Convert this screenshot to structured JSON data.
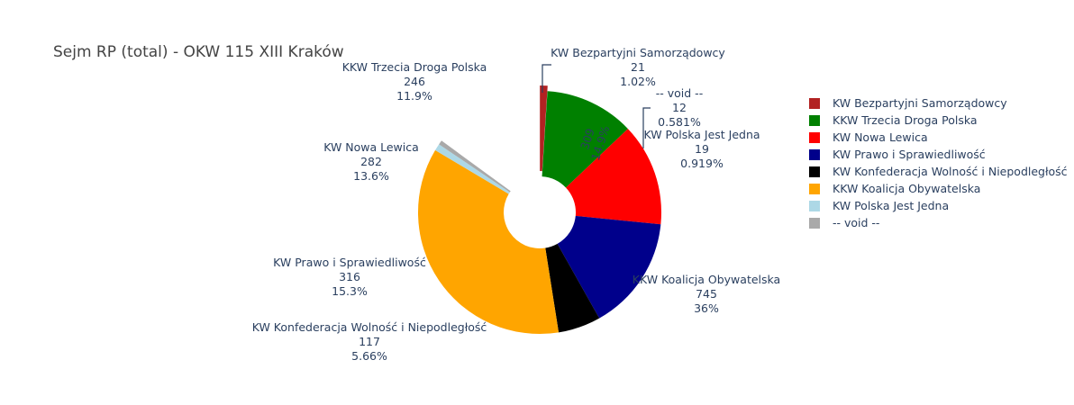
{
  "chart_data": {
    "type": "pie",
    "title": "Sejm RP (total) - OKW 115 XIII Kraków",
    "hole": true,
    "slices": [
      {
        "label": "KW Bezpartyjni Samorządowcy",
        "value": 21,
        "percent": "1.02%",
        "color": "#b22222"
      },
      {
        "label": "KKW Trzecia Droga Polska",
        "value": 246,
        "percent": "11.9%",
        "color": "#008000"
      },
      {
        "label": "KW Nowa Lewica",
        "value": 282,
        "percent": "13.6%",
        "color": "#ff0000"
      },
      {
        "label": "KW Prawo i Sprawiedliwość",
        "value": 316,
        "percent": "15.3%",
        "color": "#00008b"
      },
      {
        "label": "KW Konfederacja Wolność i Niepodległość",
        "value": 117,
        "percent": "5.66%",
        "color": "#000000"
      },
      {
        "label": "KKW Koalicja Obywatelska",
        "value": 745,
        "percent": "36%",
        "color": "#ffa500"
      },
      {
        "label": "KW Polska Jest Jedna",
        "value": 19,
        "percent": "0.919%",
        "color": "#add8e6"
      },
      {
        "label": "-- void --",
        "value": 12,
        "percent": "0.581%",
        "color": "#a9a9a9"
      },
      {
        "label": "",
        "value": 309,
        "percent": "14.9%",
        "color": "none",
        "hidden": true
      }
    ],
    "legend": {
      "placement": "right",
      "items": [
        {
          "label": "KW Bezpartyjni Samorządowcy",
          "color": "#b22222"
        },
        {
          "label": "KKW Trzecia Droga Polska",
          "color": "#008000"
        },
        {
          "label": "KW Nowa Lewica",
          "color": "#ff0000"
        },
        {
          "label": "KW Prawo i Sprawiedliwość",
          "color": "#00008b"
        },
        {
          "label": "KW Konfederacja Wolność i Niepodległość",
          "color": "#000000"
        },
        {
          "label": "KKW Koalicja Obywatelska",
          "color": "#ffa500"
        },
        {
          "label": "KW Polska Jest Jedna",
          "color": "#add8e6"
        },
        {
          "label": "-- void --",
          "color": "#a9a9a9"
        }
      ]
    }
  }
}
